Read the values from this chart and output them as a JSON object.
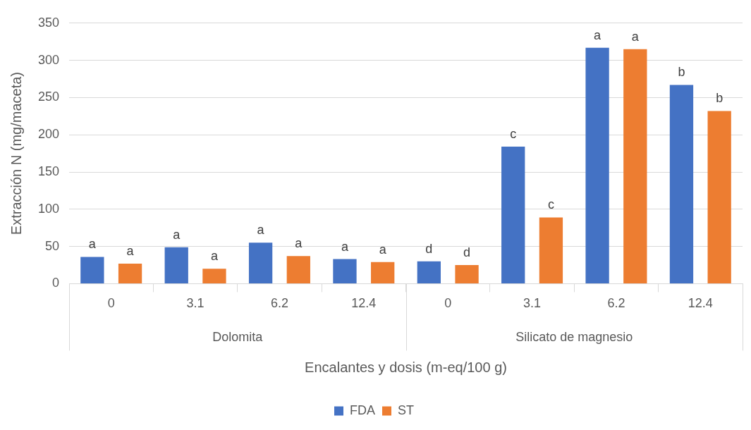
{
  "chart_data": {
    "type": "bar",
    "xlabel": "Encalantes y dosis (m-eq/100 g)",
    "ylabel": "Extracción N (mg/maceta)",
    "categories": [
      "0",
      "3.1",
      "6.2",
      "12.4",
      "0",
      "3.1",
      "6.2",
      "12.4"
    ],
    "series": [
      {
        "name": "FDA",
        "color": "#4472c4",
        "values": [
          36,
          49,
          55,
          33,
          30,
          184,
          317,
          267
        ],
        "value_labels": [
          "a",
          "a",
          "a",
          "a",
          "d",
          "c",
          "a",
          "b"
        ]
      },
      {
        "name": "ST",
        "color": "#ed7d31",
        "values": [
          27,
          20,
          37,
          29,
          25,
          89,
          315,
          232
        ],
        "value_labels": [
          "a",
          "a",
          "a",
          "a",
          "d",
          "c",
          "a",
          "b"
        ]
      }
    ],
    "annotations": [
      "Dolomita",
      "Silicato de magnesio"
    ],
    "ylim": [
      0,
      350
    ],
    "yticks": [
      0,
      50,
      100,
      150,
      200,
      250,
      300,
      350
    ],
    "grid": "y",
    "legend": "bottom"
  }
}
